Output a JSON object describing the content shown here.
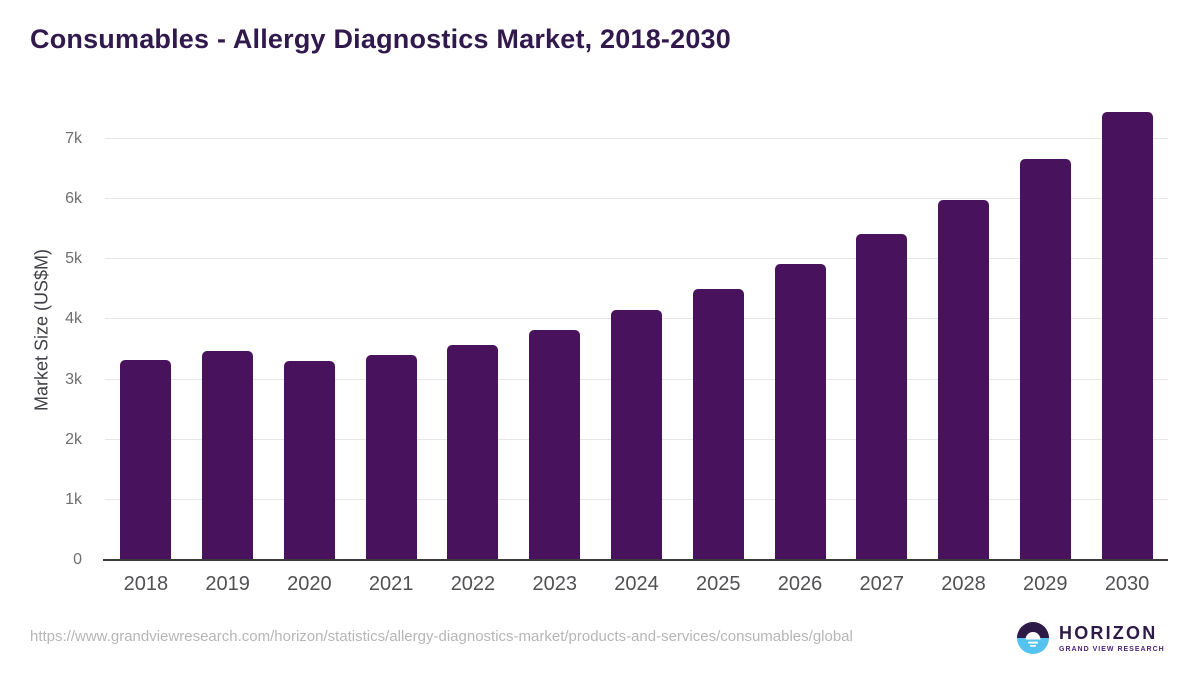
{
  "chart_data": {
    "type": "bar",
    "title": "Consumables - Allergy Diagnostics Market, 2018-2030",
    "categories": [
      "2018",
      "2019",
      "2020",
      "2021",
      "2022",
      "2023",
      "2024",
      "2025",
      "2026",
      "2027",
      "2028",
      "2029",
      "2030"
    ],
    "values": [
      3320,
      3480,
      3310,
      3410,
      3570,
      3830,
      4150,
      4500,
      4930,
      5420,
      5990,
      6660,
      7450
    ],
    "xlabel": "",
    "ylabel": "Market Size (US$M)",
    "ylim": [
      0,
      7000
    ],
    "yticks": [
      {
        "value": 0,
        "label": "0"
      },
      {
        "value": 1000,
        "label": "1k"
      },
      {
        "value": 2000,
        "label": "2k"
      },
      {
        "value": 3000,
        "label": "3k"
      },
      {
        "value": 4000,
        "label": "4k"
      },
      {
        "value": 5000,
        "label": "5k"
      },
      {
        "value": 6000,
        "label": "6k"
      },
      {
        "value": 7000,
        "label": "7k"
      }
    ],
    "grid": "horizontal",
    "legend": "none",
    "bar_color": "#48125C"
  },
  "colors": {
    "bar": "#48125C",
    "title": "#31194D",
    "x_tick": "#515154",
    "y_tick": "#6F6F6F",
    "y_axis_label": "#3F3F46",
    "gridline": "#E7E7E7",
    "axis_line": "#3A3A3A",
    "source_url": "#B6B6B6",
    "logo_dark": "#2E1A47",
    "logo_blue": "#55C3EF",
    "logo_purple": "#50267E"
  },
  "footer": {
    "source_url": "https://www.grandviewresearch.com/horizon/statistics/allergy-diagnostics-market/products-and-services/consumables/global",
    "logo": {
      "title": "HORIZON",
      "subtitle": "GRAND VIEW RESEARCH"
    }
  }
}
